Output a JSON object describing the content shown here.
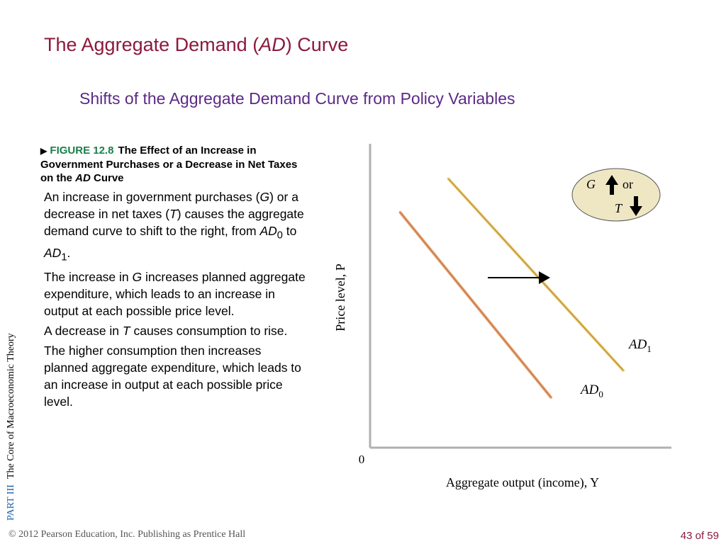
{
  "title": {
    "prefix": "The Aggregate Demand (",
    "italic": "AD",
    "suffix": ") Curve"
  },
  "subtitle": "Shifts of the Aggregate Demand Curve from Policy Variables",
  "figure": {
    "marker": "▶",
    "number": "FIGURE 12.8",
    "caption_a": "The Effect of an Increase in Government Purchases or a Decrease in Net Taxes on the ",
    "caption_italic": "AD",
    "caption_b": " Curve"
  },
  "paragraphs": {
    "p1a": "An increase in government purchases (",
    "p1_G": "G",
    "p1b": ") or a decrease in net taxes (",
    "p1_T": "T",
    "p1c": ") causes the aggregate demand curve to shift to the right, from ",
    "p1_AD": "AD",
    "p1_sub0": "0",
    "p1d": " to ",
    "p1_AD1": "AD",
    "p1_sub1": "1",
    "p1e": ".",
    "p2a": "The increase in ",
    "p2_G": "G",
    "p2b": " increases planned aggregate expenditure, which leads to an increase in output at each possible price level.",
    "p3a": "A decrease in ",
    "p3_T": "T",
    "p3b": " causes consumption to rise.",
    "p4": "The higher consumption then increases planned aggregate expenditure, which leads to an increase in output at each possible price level."
  },
  "side_label": {
    "part": "PART  III",
    "book": "The Core of Macroeconomic Theory"
  },
  "footer": {
    "copyright": "© 2012 Pearson Education, Inc. Publishing as Prentice Hall",
    "page": "43 of 59"
  },
  "chart_data": {
    "type": "line",
    "title": "",
    "xlabel": "Aggregate output (income), Y",
    "ylabel": "Price level, P",
    "origin_label": "0",
    "series": [
      {
        "name": "AD0",
        "points": [
          [
            1.0,
            7.0
          ],
          [
            6.0,
            1.5
          ]
        ],
        "color": "#e8a06a"
      },
      {
        "name": "AD1",
        "points": [
          [
            2.6,
            8.0
          ],
          [
            8.4,
            2.3
          ]
        ],
        "color": "#e8cf6a"
      }
    ],
    "xlim": [
      0,
      10
    ],
    "ylim": [
      0,
      9
    ],
    "shift_arrow": {
      "direction": "right"
    },
    "policy_legend": {
      "g_symbol": "G",
      "or_text": "or",
      "t_symbol": "T",
      "g_arrow": "up",
      "t_arrow": "down",
      "fill": "#efe7c4"
    },
    "curve_labels": {
      "AD1": {
        "main": "AD",
        "sub": "1"
      },
      "AD0": {
        "main": "AD",
        "sub": "0"
      }
    }
  }
}
